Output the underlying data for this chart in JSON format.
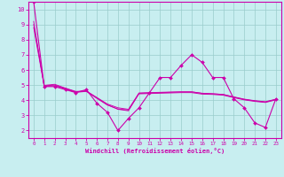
{
  "xlabel": "Windchill (Refroidissement éolien,°C)",
  "background_color": "#c8eef0",
  "grid_color": "#99cccc",
  "line_color": "#cc00aa",
  "xlim": [
    -0.5,
    23.5
  ],
  "ylim": [
    1.5,
    10.5
  ],
  "yticks": [
    2,
    3,
    4,
    5,
    6,
    7,
    8,
    9,
    10
  ],
  "xticks": [
    0,
    1,
    2,
    3,
    4,
    5,
    6,
    7,
    8,
    9,
    10,
    11,
    12,
    13,
    14,
    15,
    16,
    17,
    18,
    19,
    20,
    21,
    22,
    23
  ],
  "series_main": {
    "x": [
      0,
      1,
      2,
      3,
      4,
      5,
      6,
      7,
      8,
      9,
      10,
      11,
      12,
      13,
      14,
      15,
      16,
      17,
      18,
      19,
      20,
      21,
      22,
      23
    ],
    "y": [
      10.5,
      4.9,
      4.9,
      4.7,
      4.5,
      4.7,
      3.8,
      3.2,
      2.0,
      2.8,
      3.5,
      4.5,
      5.5,
      5.5,
      6.3,
      7.0,
      6.5,
      5.5,
      5.5,
      4.1,
      3.5,
      2.5,
      2.2,
      4.1
    ]
  },
  "series_smooth": [
    [
      9.2,
      4.95,
      5.0,
      4.78,
      4.55,
      4.62,
      4.15,
      3.7,
      3.4,
      3.3,
      4.45,
      4.48,
      4.5,
      4.52,
      4.55,
      4.55,
      4.45,
      4.42,
      4.38,
      4.2,
      4.05,
      3.95,
      3.88,
      4.05
    ],
    [
      9.0,
      4.98,
      5.05,
      4.8,
      4.58,
      4.6,
      4.18,
      3.75,
      3.5,
      3.4,
      4.48,
      4.5,
      4.52,
      4.54,
      4.55,
      4.55,
      4.46,
      4.43,
      4.38,
      4.22,
      4.07,
      3.97,
      3.9,
      4.07
    ],
    [
      8.8,
      4.92,
      4.95,
      4.75,
      4.52,
      4.58,
      4.12,
      3.68,
      3.42,
      3.35,
      4.42,
      4.44,
      4.46,
      4.48,
      4.5,
      4.5,
      4.4,
      4.38,
      4.33,
      4.17,
      4.02,
      3.92,
      3.85,
      4.02
    ]
  ]
}
